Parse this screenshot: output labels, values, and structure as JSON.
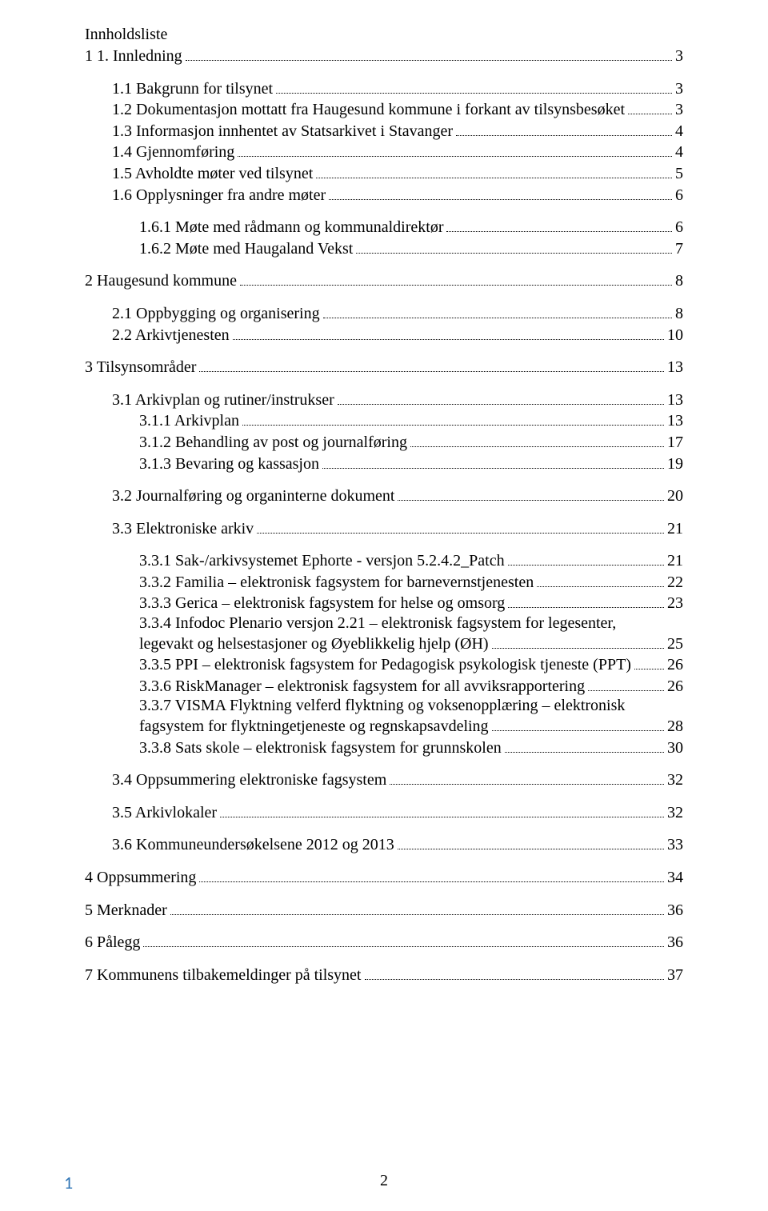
{
  "title": "Innholdsliste",
  "entries": [
    {
      "label": "1 1. Innledning",
      "page": "3",
      "indent": 0
    },
    {
      "label": "1.1 Bakgrunn for tilsynet",
      "page": "3",
      "indent": 1
    },
    {
      "label": "1.2 Dokumentasjon mottatt fra Haugesund kommune i forkant av tilsynsbesøket",
      "page": "3",
      "indent": 1
    },
    {
      "label": "1.3 Informasjon innhentet av Statsarkivet i Stavanger",
      "page": "4",
      "indent": 1
    },
    {
      "label": "1.4 Gjennomføring",
      "page": "4",
      "indent": 1
    },
    {
      "label": "1.5 Avholdte møter ved tilsynet",
      "page": "5",
      "indent": 1
    },
    {
      "label": "1.6 Opplysninger fra andre møter",
      "page": "6",
      "indent": 1
    },
    {
      "label": "1.6.1 Møte med rådmann og kommunaldirektør",
      "page": "6",
      "indent": 2
    },
    {
      "label": "1.6.2 Møte med Haugaland Vekst",
      "page": "7",
      "indent": 2
    },
    {
      "label": "2 Haugesund kommune",
      "page": "8",
      "indent": 0
    },
    {
      "label": "2.1 Oppbygging og organisering",
      "page": "8",
      "indent": 1
    },
    {
      "label": "2.2 Arkivtjenesten",
      "page": "10",
      "indent": 1
    },
    {
      "label": "3 Tilsynsområder",
      "page": "13",
      "indent": 0
    },
    {
      "label": "3.1 Arkivplan og rutiner/instrukser",
      "page": "13",
      "indent": 1
    },
    {
      "label": "3.1.1 Arkivplan",
      "page": "13",
      "indent": 2
    },
    {
      "label": "3.1.2 Behandling av post og journalføring",
      "page": "17",
      "indent": 2
    },
    {
      "label": "3.1.3 Bevaring og kassasjon",
      "page": "19",
      "indent": 2
    },
    {
      "label": "3.2 Journalføring og organinterne dokument",
      "page": "20",
      "indent": 1
    },
    {
      "label": "3.3 Elektroniske arkiv",
      "page": "21",
      "indent": 1
    },
    {
      "label": "3.3.1 Sak-/arkivsystemet Ephorte - versjon 5.2.4.2_Patch",
      "page": "21",
      "indent": 2
    },
    {
      "label": "3.3.2 Familia – elektronisk fagsystem for barnevernstjenesten",
      "page": "22",
      "indent": 2
    },
    {
      "label": "3.3.3 Gerica – elektronisk fagsystem for helse og omsorg",
      "page": "23",
      "indent": 2
    },
    {
      "label": "3.3.4 Infodoc Plenario versjon 2.21 – elektronisk fagsystem for legesenter, legevakt og helsestasjoner og Øyeblikkelig hjelp (ØH)",
      "page": "25",
      "indent": 2,
      "wrap": true
    },
    {
      "label": "3.3.5 PPI – elektronisk fagsystem for Pedagogisk psykologisk tjeneste (PPT)",
      "page": "26",
      "indent": 2
    },
    {
      "label": "3.3.6 RiskManager – elektronisk fagsystem for all avviksrapportering",
      "page": "26",
      "indent": 2
    },
    {
      "label": "3.3.7 VISMA Flyktning velferd flyktning og voksenopplæring – elektronisk fagsystem for flyktningetjeneste og regnskapsavdeling",
      "page": "28",
      "indent": 2,
      "wrap": true
    },
    {
      "label": "3.3.8 Sats skole – elektronisk fagsystem for grunnskolen",
      "page": "30",
      "indent": 2
    },
    {
      "label": "3.4 Oppsummering elektroniske fagsystem",
      "page": "32",
      "indent": 1
    },
    {
      "label": "3.5 Arkivlokaler",
      "page": "32",
      "indent": 1
    },
    {
      "label": "3.6 Kommuneundersøkelsene 2012 og 2013",
      "page": "33",
      "indent": 1
    },
    {
      "label": "4 Oppsummering",
      "page": "34",
      "indent": 0
    },
    {
      "label": "5 Merknader",
      "page": "36",
      "indent": 0
    },
    {
      "label": "6 Pålegg",
      "page": "36",
      "indent": 0
    },
    {
      "label": "7 Kommunens tilbakemeldinger på tilsynet",
      "page": "37",
      "indent": 0
    }
  ],
  "pageNumber": "2",
  "footerLeft": "1",
  "spacing": {
    "afterIndex": [
      0,
      6,
      8,
      9,
      11,
      12,
      16,
      17,
      18,
      26,
      27,
      28,
      29,
      30,
      31,
      32,
      33
    ]
  }
}
